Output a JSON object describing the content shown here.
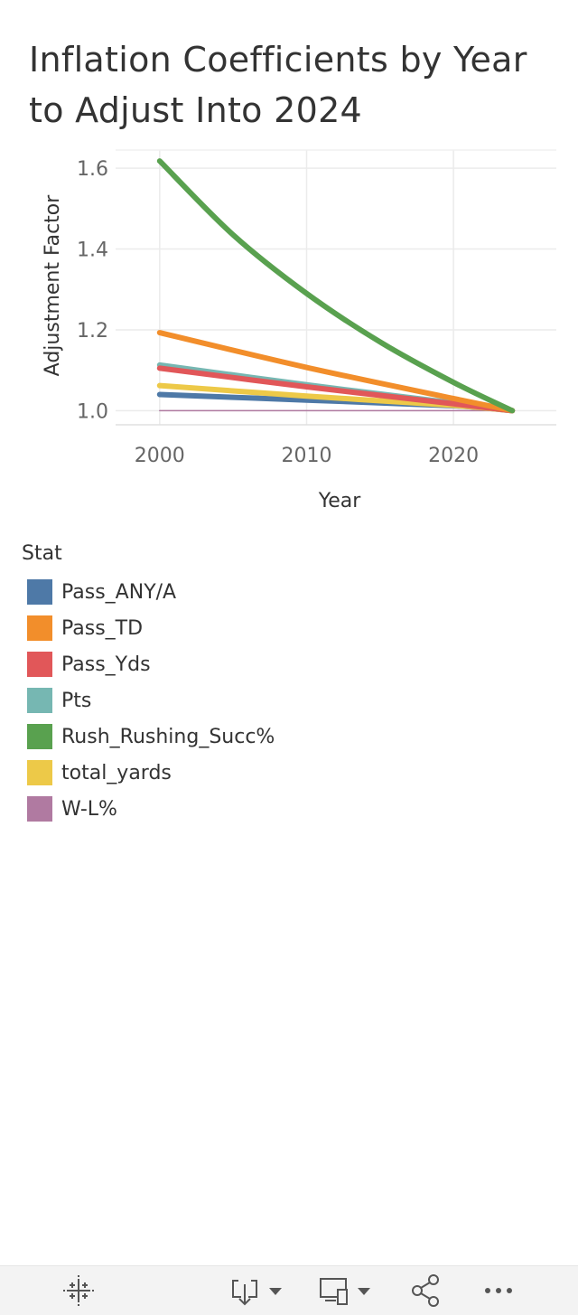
{
  "title": "Inflation Coefficients by Year to Adjust Into 2024",
  "legend": {
    "title": "Stat",
    "items": [
      {
        "label": "Pass_ANY/A",
        "color": "#4e79a7"
      },
      {
        "label": "Pass_TD",
        "color": "#f28e2b"
      },
      {
        "label": "Pass_Yds",
        "color": "#e15759"
      },
      {
        "label": "Pts",
        "color": "#76b7b2"
      },
      {
        "label": "Rush_Rushing_Succ%",
        "color": "#59a14f"
      },
      {
        "label": "total_yards",
        "color": "#edc948"
      },
      {
        "label": "W-L%",
        "color": "#b07aa1"
      }
    ]
  },
  "chart_data": {
    "type": "line",
    "title": "Inflation Coefficients by Year to Adjust Into 2024",
    "xlabel": "Year",
    "ylabel": "Adjustment Factor",
    "xlim": [
      1997,
      2027
    ],
    "ylim": [
      0.965,
      1.645
    ],
    "xticks": [
      2000,
      2010,
      2020
    ],
    "yticks": [
      1.0,
      1.2,
      1.4,
      1.6
    ],
    "ytick_labels": [
      "1.0",
      "1.2",
      "1.4",
      "1.6"
    ],
    "grid": true,
    "legend_position": "bottom",
    "series": [
      {
        "name": "W-L%",
        "color": "#b07aa1",
        "x": [
          2000,
          2024
        ],
        "y": [
          1.0,
          1.0
        ]
      },
      {
        "name": "Pass_ANY/A",
        "color": "#4e79a7",
        "x": [
          2000,
          2010,
          2020,
          2024
        ],
        "y": [
          1.04,
          1.026,
          1.012,
          1.0
        ]
      },
      {
        "name": "total_yards",
        "color": "#edc948",
        "x": [
          2000,
          2010,
          2020,
          2024
        ],
        "y": [
          1.062,
          1.036,
          1.013,
          1.0
        ]
      },
      {
        "name": "Pts",
        "color": "#76b7b2",
        "x": [
          2000,
          2010,
          2020,
          2024
        ],
        "y": [
          1.113,
          1.064,
          1.019,
          1.0
        ]
      },
      {
        "name": "Pass_Yds",
        "color": "#e15759",
        "x": [
          2000,
          2010,
          2020,
          2024
        ],
        "y": [
          1.105,
          1.059,
          1.017,
          1.0
        ]
      },
      {
        "name": "Pass_TD",
        "color": "#f28e2b",
        "x": [
          2000,
          2010,
          2020,
          2024
        ],
        "y": [
          1.193,
          1.107,
          1.03,
          1.0
        ]
      },
      {
        "name": "Rush_Rushing_Succ%",
        "color": "#59a14f",
        "x": [
          2000,
          2005,
          2010,
          2015,
          2020,
          2024
        ],
        "y": [
          1.618,
          1.435,
          1.29,
          1.17,
          1.07,
          1.0
        ]
      }
    ]
  },
  "toolbar": {
    "icons": [
      "tableau-logo-icon",
      "download-icon",
      "device-layout-icon",
      "share-icon",
      "more-icon"
    ]
  }
}
